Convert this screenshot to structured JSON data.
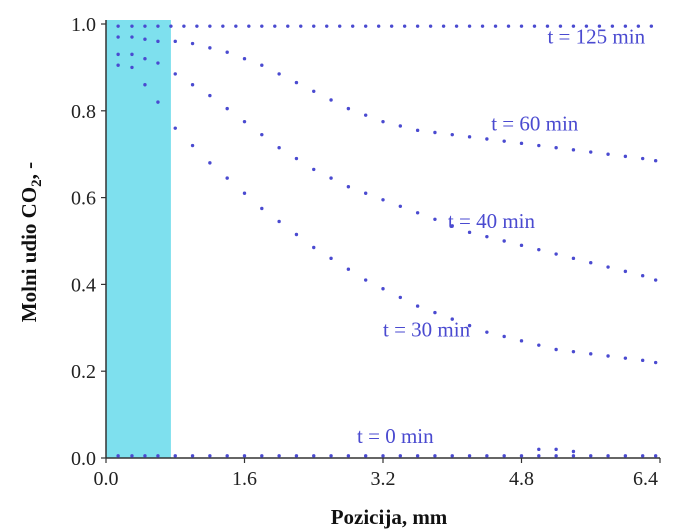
{
  "chart_data": {
    "type": "scatter",
    "title": "",
    "xlabel": "Pozicija, mm",
    "ylabel_main": "Molni udio CO",
    "ylabel_sub": "2",
    "ylabel_tail": ", -",
    "xlim": [
      0.0,
      6.4
    ],
    "ylim": [
      0.0,
      1.0
    ],
    "x_ticks": [
      "0.0",
      "1.6",
      "3.2",
      "4.8",
      "6.4"
    ],
    "y_ticks": [
      "0.0",
      "0.2",
      "0.4",
      "0.6",
      "0.8",
      "1.0"
    ],
    "grid": false,
    "shaded_region": {
      "x_start": 0.0,
      "x_end": 0.75,
      "color": "#7ee0ee"
    },
    "series_color": "#4a4ad0",
    "series": [
      {
        "label": "t = 125 min",
        "x": [
          0.14,
          0.3,
          0.45,
          0.6,
          0.75,
          0.9,
          1.05,
          1.2,
          1.35,
          1.5,
          1.65,
          1.8,
          1.95,
          2.1,
          2.25,
          2.4,
          2.55,
          2.7,
          2.85,
          3.0,
          3.15,
          3.3,
          3.45,
          3.6,
          3.75,
          3.9,
          4.05,
          4.2,
          4.35,
          4.5,
          4.65,
          4.8,
          4.95,
          5.1,
          5.25,
          5.4,
          5.55,
          5.7,
          5.85,
          6.0,
          6.15,
          6.3
        ],
        "y": [
          0.995,
          0.995,
          0.995,
          0.995,
          0.995,
          0.995,
          0.995,
          0.995,
          0.995,
          0.995,
          0.995,
          0.995,
          0.995,
          0.995,
          0.995,
          0.995,
          0.995,
          0.995,
          0.995,
          0.995,
          0.995,
          0.995,
          0.995,
          0.995,
          0.995,
          0.995,
          0.995,
          0.995,
          0.995,
          0.995,
          0.995,
          0.995,
          0.995,
          0.995,
          0.995,
          0.995,
          0.995,
          0.995,
          0.995,
          0.995,
          0.995,
          0.995
        ]
      },
      {
        "label": "t = 60 min",
        "x": [
          0.14,
          0.3,
          0.45,
          0.6,
          0.8,
          1.0,
          1.2,
          1.4,
          1.6,
          1.8,
          2.0,
          2.2,
          2.4,
          2.6,
          2.8,
          3.0,
          3.2,
          3.4,
          3.6,
          3.8,
          4.0,
          4.2,
          4.4,
          4.6,
          4.8,
          5.0,
          5.2,
          5.4,
          5.6,
          5.8,
          6.0,
          6.2,
          6.35
        ],
        "y": [
          0.97,
          0.97,
          0.965,
          0.96,
          0.96,
          0.955,
          0.945,
          0.935,
          0.92,
          0.905,
          0.885,
          0.865,
          0.845,
          0.825,
          0.805,
          0.79,
          0.775,
          0.765,
          0.755,
          0.75,
          0.745,
          0.74,
          0.735,
          0.73,
          0.725,
          0.72,
          0.715,
          0.71,
          0.705,
          0.7,
          0.695,
          0.69,
          0.685
        ]
      },
      {
        "label": "t = 40 min",
        "x": [
          0.14,
          0.3,
          0.45,
          0.6,
          0.8,
          1.0,
          1.2,
          1.4,
          1.6,
          1.8,
          2.0,
          2.2,
          2.4,
          2.6,
          2.8,
          3.0,
          3.2,
          3.4,
          3.6,
          3.8,
          4.0,
          4.2,
          4.4,
          4.6,
          4.8,
          5.0,
          5.2,
          5.4,
          5.6,
          5.8,
          6.0,
          6.2,
          6.35
        ],
        "y": [
          0.93,
          0.93,
          0.92,
          0.91,
          0.885,
          0.86,
          0.835,
          0.805,
          0.775,
          0.745,
          0.715,
          0.69,
          0.665,
          0.645,
          0.625,
          0.61,
          0.595,
          0.58,
          0.565,
          0.55,
          0.535,
          0.52,
          0.51,
          0.5,
          0.49,
          0.48,
          0.47,
          0.46,
          0.45,
          0.44,
          0.43,
          0.42,
          0.41
        ]
      },
      {
        "label": "t = 30 min",
        "x": [
          0.14,
          0.3,
          0.45,
          0.6,
          0.8,
          1.0,
          1.2,
          1.4,
          1.6,
          1.8,
          2.0,
          2.2,
          2.4,
          2.6,
          2.8,
          3.0,
          3.2,
          3.4,
          3.6,
          3.8,
          4.0,
          4.2,
          4.4,
          4.6,
          4.8,
          5.0,
          5.2,
          5.4,
          5.6,
          5.8,
          6.0,
          6.2,
          6.35
        ],
        "y": [
          0.905,
          0.9,
          0.86,
          0.82,
          0.76,
          0.72,
          0.68,
          0.645,
          0.61,
          0.575,
          0.545,
          0.515,
          0.485,
          0.46,
          0.435,
          0.41,
          0.39,
          0.37,
          0.35,
          0.335,
          0.32,
          0.305,
          0.29,
          0.28,
          0.27,
          0.26,
          0.25,
          0.245,
          0.24,
          0.235,
          0.23,
          0.225,
          0.22
        ]
      },
      {
        "label": "t = 0 min",
        "x": [
          0.14,
          0.3,
          0.45,
          0.6,
          0.8,
          1.0,
          1.2,
          1.4,
          1.6,
          1.8,
          2.0,
          2.2,
          2.4,
          2.6,
          2.8,
          3.0,
          3.2,
          3.4,
          3.6,
          3.8,
          4.0,
          4.2,
          4.4,
          4.6,
          4.8,
          5.0,
          5.2,
          5.4,
          5.6,
          5.8,
          6.0,
          6.2,
          6.35
        ],
        "y": [
          0.005,
          0.005,
          0.005,
          0.005,
          0.005,
          0.005,
          0.005,
          0.005,
          0.005,
          0.005,
          0.005,
          0.005,
          0.005,
          0.005,
          0.005,
          0.005,
          0.005,
          0.005,
          0.005,
          0.005,
          0.005,
          0.005,
          0.005,
          0.005,
          0.005,
          0.005,
          0.005,
          0.005,
          0.005,
          0.005,
          0.005,
          0.005,
          0.005
        ]
      }
    ],
    "annotations": [
      {
        "text": "t = 125 min",
        "x": 5.1,
        "y": 0.955
      },
      {
        "text": "t = 60 min",
        "x": 4.45,
        "y": 0.755
      },
      {
        "text": "t = 40 min",
        "x": 3.95,
        "y": 0.53
      },
      {
        "text": "t = 30 min",
        "x": 3.2,
        "y": 0.28
      },
      {
        "text": "t = 0 min",
        "x": 2.9,
        "y": 0.035
      }
    ],
    "extra_points": [
      {
        "x": 5.0,
        "y": 0.02
      },
      {
        "x": 5.2,
        "y": 0.02
      },
      {
        "x": 5.4,
        "y": 0.015
      }
    ]
  }
}
